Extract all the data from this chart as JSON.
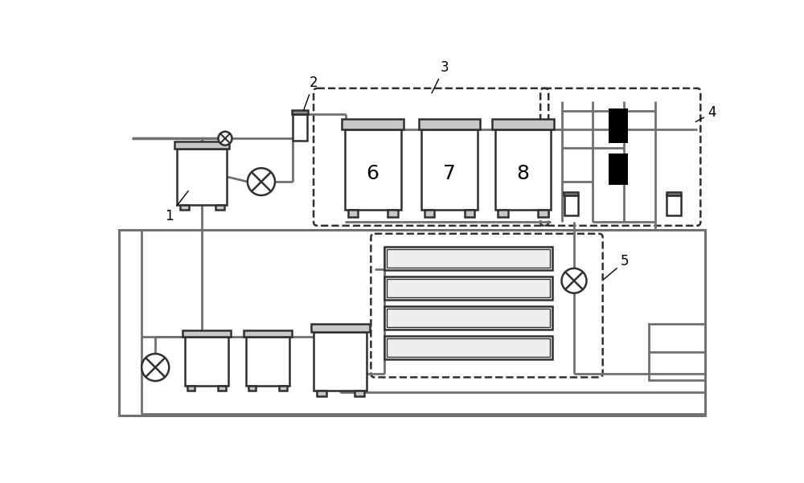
{
  "bg_color": "#ffffff",
  "lc": "#707070",
  "dc": "#303030",
  "figsize": [
    10.0,
    6.01
  ],
  "dpi": 100
}
